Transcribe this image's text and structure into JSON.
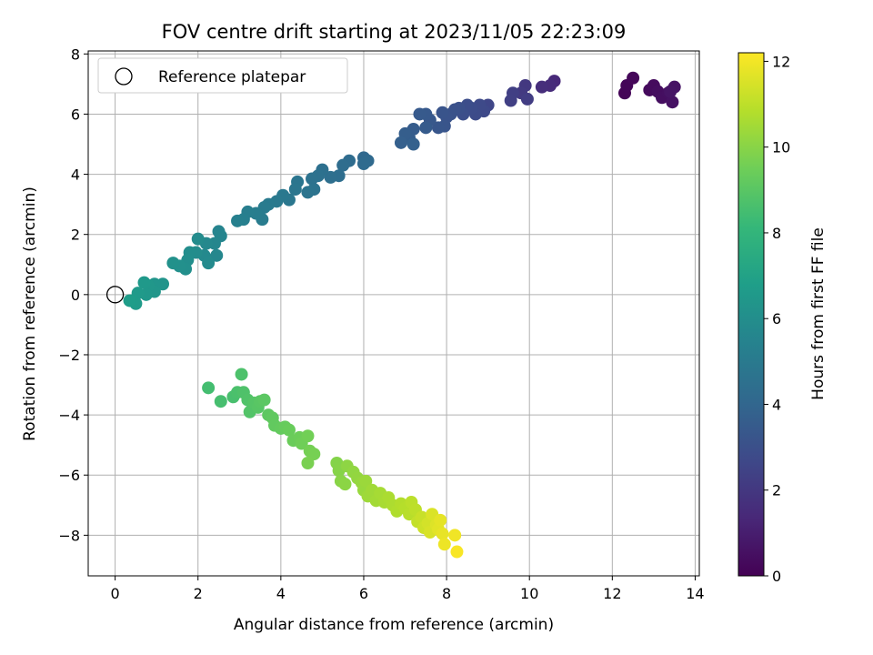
{
  "chart_data": {
    "type": "scatter",
    "title": "FOV centre drift starting at 2023/11/05 22:23:09",
    "xlabel": "Angular distance from reference (arcmin)",
    "ylabel": "Rotation from reference (arcmin)",
    "xlim": [
      -0.65,
      14.1
    ],
    "ylim": [
      -9.35,
      8.1
    ],
    "xticks": [
      0,
      2,
      4,
      6,
      8,
      10,
      12,
      14
    ],
    "yticks": [
      -8,
      -6,
      -4,
      -2,
      0,
      2,
      4,
      6,
      8
    ],
    "grid": true,
    "legend": {
      "position": "top-left",
      "label": "Reference platepar",
      "marker": "open-circle"
    },
    "reference_point": {
      "x": 0,
      "y": 0
    },
    "colorbar": {
      "label": "Hours from first FF file",
      "colormap": "viridis",
      "range": [
        0,
        12.2
      ],
      "ticks": [
        0,
        2,
        4,
        6,
        8,
        10,
        12
      ]
    },
    "colormap_stops": [
      "#440154",
      "#482878",
      "#3e4989",
      "#31688e",
      "#26828e",
      "#1f9e89",
      "#35b779",
      "#6ece58",
      "#b5de2b",
      "#fde725"
    ],
    "points": [
      {
        "x": 12.3,
        "y": 6.7,
        "t": 0.1
      },
      {
        "x": 12.35,
        "y": 6.95,
        "t": 0.15
      },
      {
        "x": 12.5,
        "y": 7.2,
        "t": 0.2
      },
      {
        "x": 12.9,
        "y": 6.8,
        "t": 0.3
      },
      {
        "x": 13.0,
        "y": 6.95,
        "t": 0.35
      },
      {
        "x": 13.1,
        "y": 6.75,
        "t": 0.4
      },
      {
        "x": 13.2,
        "y": 6.55,
        "t": 0.45
      },
      {
        "x": 13.35,
        "y": 6.7,
        "t": 0.5
      },
      {
        "x": 13.45,
        "y": 6.4,
        "t": 0.55
      },
      {
        "x": 13.5,
        "y": 6.9,
        "t": 0.6
      },
      {
        "x": 13.4,
        "y": 6.75,
        "t": 0.65
      },
      {
        "x": 10.6,
        "y": 7.1,
        "t": 1.4
      },
      {
        "x": 10.5,
        "y": 6.95,
        "t": 1.5
      },
      {
        "x": 10.3,
        "y": 6.9,
        "t": 1.6
      },
      {
        "x": 9.9,
        "y": 6.95,
        "t": 2.0
      },
      {
        "x": 9.8,
        "y": 6.7,
        "t": 2.1
      },
      {
        "x": 9.95,
        "y": 6.5,
        "t": 2.2
      },
      {
        "x": 9.6,
        "y": 6.7,
        "t": 2.3
      },
      {
        "x": 9.55,
        "y": 6.45,
        "t": 2.35
      },
      {
        "x": 9.0,
        "y": 6.3,
        "t": 2.6
      },
      {
        "x": 8.9,
        "y": 6.1,
        "t": 2.7
      },
      {
        "x": 8.8,
        "y": 6.3,
        "t": 2.75
      },
      {
        "x": 8.7,
        "y": 6.0,
        "t": 2.8
      },
      {
        "x": 8.6,
        "y": 6.2,
        "t": 2.85
      },
      {
        "x": 8.5,
        "y": 6.3,
        "t": 2.9
      },
      {
        "x": 8.4,
        "y": 6.0,
        "t": 2.95
      },
      {
        "x": 8.3,
        "y": 6.2,
        "t": 3.0
      },
      {
        "x": 8.2,
        "y": 6.15,
        "t": 3.05
      },
      {
        "x": 8.1,
        "y": 6.0,
        "t": 3.1
      },
      {
        "x": 8.0,
        "y": 5.9,
        "t": 3.15
      },
      {
        "x": 7.9,
        "y": 6.05,
        "t": 3.2
      },
      {
        "x": 7.95,
        "y": 5.6,
        "t": 3.25
      },
      {
        "x": 7.8,
        "y": 5.55,
        "t": 3.3
      },
      {
        "x": 7.6,
        "y": 5.8,
        "t": 3.35
      },
      {
        "x": 7.5,
        "y": 6.0,
        "t": 3.4
      },
      {
        "x": 7.35,
        "y": 6.0,
        "t": 3.45
      },
      {
        "x": 7.5,
        "y": 5.55,
        "t": 3.5
      },
      {
        "x": 7.2,
        "y": 5.5,
        "t": 3.55
      },
      {
        "x": 7.1,
        "y": 5.2,
        "t": 3.6
      },
      {
        "x": 7.0,
        "y": 5.35,
        "t": 3.65
      },
      {
        "x": 6.9,
        "y": 5.05,
        "t": 3.7
      },
      {
        "x": 7.2,
        "y": 5.0,
        "t": 3.75
      },
      {
        "x": 6.0,
        "y": 4.55,
        "t": 4.1
      },
      {
        "x": 6.1,
        "y": 4.45,
        "t": 4.15
      },
      {
        "x": 6.0,
        "y": 4.35,
        "t": 4.2
      },
      {
        "x": 5.65,
        "y": 4.45,
        "t": 4.3
      },
      {
        "x": 5.5,
        "y": 4.3,
        "t": 4.35
      },
      {
        "x": 5.4,
        "y": 3.95,
        "t": 4.4
      },
      {
        "x": 5.2,
        "y": 3.9,
        "t": 4.45
      },
      {
        "x": 5.0,
        "y": 4.15,
        "t": 4.5
      },
      {
        "x": 4.9,
        "y": 3.95,
        "t": 4.55
      },
      {
        "x": 4.75,
        "y": 3.85,
        "t": 4.6
      },
      {
        "x": 4.8,
        "y": 3.5,
        "t": 4.65
      },
      {
        "x": 4.65,
        "y": 3.4,
        "t": 4.7
      },
      {
        "x": 4.4,
        "y": 3.75,
        "t": 4.75
      },
      {
        "x": 4.35,
        "y": 3.5,
        "t": 4.8
      },
      {
        "x": 4.2,
        "y": 3.15,
        "t": 4.85
      },
      {
        "x": 4.05,
        "y": 3.3,
        "t": 4.9
      },
      {
        "x": 3.9,
        "y": 3.1,
        "t": 4.95
      },
      {
        "x": 3.7,
        "y": 3.0,
        "t": 5.0
      },
      {
        "x": 3.6,
        "y": 2.9,
        "t": 5.05
      },
      {
        "x": 3.55,
        "y": 2.5,
        "t": 5.1
      },
      {
        "x": 3.4,
        "y": 2.7,
        "t": 5.15
      },
      {
        "x": 3.2,
        "y": 2.75,
        "t": 5.2
      },
      {
        "x": 3.1,
        "y": 2.5,
        "t": 5.25
      },
      {
        "x": 2.95,
        "y": 2.45,
        "t": 5.3
      },
      {
        "x": 2.5,
        "y": 2.1,
        "t": 5.5
      },
      {
        "x": 2.55,
        "y": 1.95,
        "t": 5.55
      },
      {
        "x": 2.4,
        "y": 1.7,
        "t": 5.6
      },
      {
        "x": 2.45,
        "y": 1.3,
        "t": 5.65
      },
      {
        "x": 2.2,
        "y": 1.7,
        "t": 5.7
      },
      {
        "x": 2.15,
        "y": 1.3,
        "t": 5.75
      },
      {
        "x": 2.25,
        "y": 1.05,
        "t": 5.8
      },
      {
        "x": 2.0,
        "y": 1.85,
        "t": 5.85
      },
      {
        "x": 1.95,
        "y": 1.4,
        "t": 5.9
      },
      {
        "x": 1.8,
        "y": 1.4,
        "t": 5.95
      },
      {
        "x": 1.75,
        "y": 1.15,
        "t": 6.0
      },
      {
        "x": 1.7,
        "y": 0.85,
        "t": 6.05
      },
      {
        "x": 1.55,
        "y": 0.95,
        "t": 6.1
      },
      {
        "x": 1.4,
        "y": 1.05,
        "t": 6.15
      },
      {
        "x": 1.15,
        "y": 0.35,
        "t": 6.3
      },
      {
        "x": 0.95,
        "y": 0.35,
        "t": 6.35
      },
      {
        "x": 0.95,
        "y": 0.1,
        "t": 6.4
      },
      {
        "x": 0.8,
        "y": 0.3,
        "t": 6.45
      },
      {
        "x": 0.75,
        "y": 0.0,
        "t": 6.5
      },
      {
        "x": 0.7,
        "y": 0.4,
        "t": 6.55
      },
      {
        "x": 0.55,
        "y": 0.05,
        "t": 6.6
      },
      {
        "x": 0.5,
        "y": -0.3,
        "t": 6.65
      },
      {
        "x": 0.4,
        "y": -0.2,
        "t": 6.7
      },
      {
        "x": 0.35,
        "y": -0.2,
        "t": 6.75
      },
      {
        "x": 2.25,
        "y": -3.1,
        "t": 8.5
      },
      {
        "x": 2.55,
        "y": -3.55,
        "t": 8.55
      },
      {
        "x": 2.85,
        "y": -3.4,
        "t": 8.6
      },
      {
        "x": 2.95,
        "y": -3.25,
        "t": 8.65
      },
      {
        "x": 3.05,
        "y": -2.65,
        "t": 8.7
      },
      {
        "x": 3.1,
        "y": -3.25,
        "t": 8.75
      },
      {
        "x": 3.2,
        "y": -3.5,
        "t": 8.8
      },
      {
        "x": 3.25,
        "y": -3.9,
        "t": 8.85
      },
      {
        "x": 3.35,
        "y": -3.6,
        "t": 8.9
      },
      {
        "x": 3.45,
        "y": -3.75,
        "t": 8.95
      },
      {
        "x": 3.5,
        "y": -3.55,
        "t": 9.0
      },
      {
        "x": 3.6,
        "y": -3.5,
        "t": 9.05
      },
      {
        "x": 3.7,
        "y": -4.0,
        "t": 9.1
      },
      {
        "x": 3.8,
        "y": -4.1,
        "t": 9.15
      },
      {
        "x": 3.85,
        "y": -4.35,
        "t": 9.2
      },
      {
        "x": 4.0,
        "y": -4.45,
        "t": 9.25
      },
      {
        "x": 4.1,
        "y": -4.4,
        "t": 9.3
      },
      {
        "x": 4.2,
        "y": -4.5,
        "t": 9.35
      },
      {
        "x": 4.3,
        "y": -4.85,
        "t": 9.4
      },
      {
        "x": 4.45,
        "y": -4.75,
        "t": 9.45
      },
      {
        "x": 4.5,
        "y": -4.95,
        "t": 9.5
      },
      {
        "x": 4.65,
        "y": -4.7,
        "t": 9.55
      },
      {
        "x": 4.7,
        "y": -5.2,
        "t": 9.6
      },
      {
        "x": 4.8,
        "y": -5.3,
        "t": 9.65
      },
      {
        "x": 4.65,
        "y": -5.6,
        "t": 9.7
      },
      {
        "x": 5.35,
        "y": -5.6,
        "t": 9.9
      },
      {
        "x": 5.4,
        "y": -5.85,
        "t": 9.95
      },
      {
        "x": 5.45,
        "y": -6.2,
        "t": 10.0
      },
      {
        "x": 5.55,
        "y": -6.3,
        "t": 10.05
      },
      {
        "x": 5.6,
        "y": -5.7,
        "t": 10.1
      },
      {
        "x": 5.75,
        "y": -5.9,
        "t": 10.15
      },
      {
        "x": 5.85,
        "y": -6.1,
        "t": 10.2
      },
      {
        "x": 5.95,
        "y": -6.25,
        "t": 10.25
      },
      {
        "x": 6.0,
        "y": -6.5,
        "t": 10.3
      },
      {
        "x": 6.05,
        "y": -6.2,
        "t": 10.35
      },
      {
        "x": 6.1,
        "y": -6.7,
        "t": 10.4
      },
      {
        "x": 6.2,
        "y": -6.5,
        "t": 10.45
      },
      {
        "x": 6.3,
        "y": -6.85,
        "t": 10.5
      },
      {
        "x": 6.4,
        "y": -6.6,
        "t": 10.55
      },
      {
        "x": 6.5,
        "y": -6.9,
        "t": 10.6
      },
      {
        "x": 6.6,
        "y": -6.75,
        "t": 10.65
      },
      {
        "x": 6.7,
        "y": -7.0,
        "t": 10.7
      },
      {
        "x": 6.8,
        "y": -7.2,
        "t": 10.75
      },
      {
        "x": 6.9,
        "y": -6.95,
        "t": 10.8
      },
      {
        "x": 7.0,
        "y": -7.1,
        "t": 10.85
      },
      {
        "x": 7.1,
        "y": -7.3,
        "t": 10.9
      },
      {
        "x": 7.15,
        "y": -6.9,
        "t": 10.95
      },
      {
        "x": 7.25,
        "y": -7.15,
        "t": 11.0
      },
      {
        "x": 7.3,
        "y": -7.55,
        "t": 11.1
      },
      {
        "x": 7.4,
        "y": -7.4,
        "t": 11.2
      },
      {
        "x": 7.45,
        "y": -7.75,
        "t": 11.3
      },
      {
        "x": 7.55,
        "y": -7.6,
        "t": 11.4
      },
      {
        "x": 7.6,
        "y": -7.9,
        "t": 11.5
      },
      {
        "x": 7.65,
        "y": -7.3,
        "t": 11.55
      },
      {
        "x": 7.75,
        "y": -7.65,
        "t": 11.6
      },
      {
        "x": 7.8,
        "y": -7.8,
        "t": 11.7
      },
      {
        "x": 7.85,
        "y": -7.5,
        "t": 11.75
      },
      {
        "x": 7.9,
        "y": -7.95,
        "t": 11.8
      },
      {
        "x": 7.95,
        "y": -8.3,
        "t": 11.9
      },
      {
        "x": 8.2,
        "y": -8.0,
        "t": 11.95
      },
      {
        "x": 8.25,
        "y": -8.55,
        "t": 12.1
      }
    ]
  }
}
